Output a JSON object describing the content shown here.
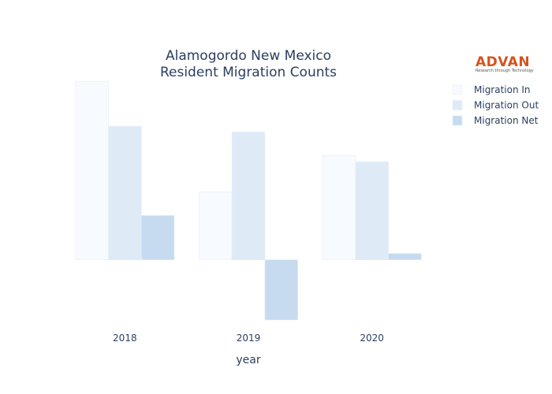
{
  "chart_data": {
    "type": "bar",
    "title": [
      "Alamogordo New Mexico",
      "Resident Migration Counts"
    ],
    "xlabel": "year",
    "ylabel": "",
    "categories": [
      "2018",
      "2019",
      "2020"
    ],
    "series": [
      {
        "name": "Migration In",
        "values": [
          1410,
          535,
          825
        ],
        "color": "#f7fbff"
      },
      {
        "name": "Migration Out",
        "values": [
          1055,
          1010,
          775
        ],
        "color": "#deebf7"
      },
      {
        "name": "Migration Net",
        "values": [
          350,
          -475,
          50
        ],
        "color": "#c6dbef"
      }
    ],
    "ylim": [
      -500,
      1430
    ],
    "grid": false,
    "legend_position": "top-right"
  },
  "logo": {
    "text": "ADVAN",
    "tagline": "Research through Technology"
  }
}
